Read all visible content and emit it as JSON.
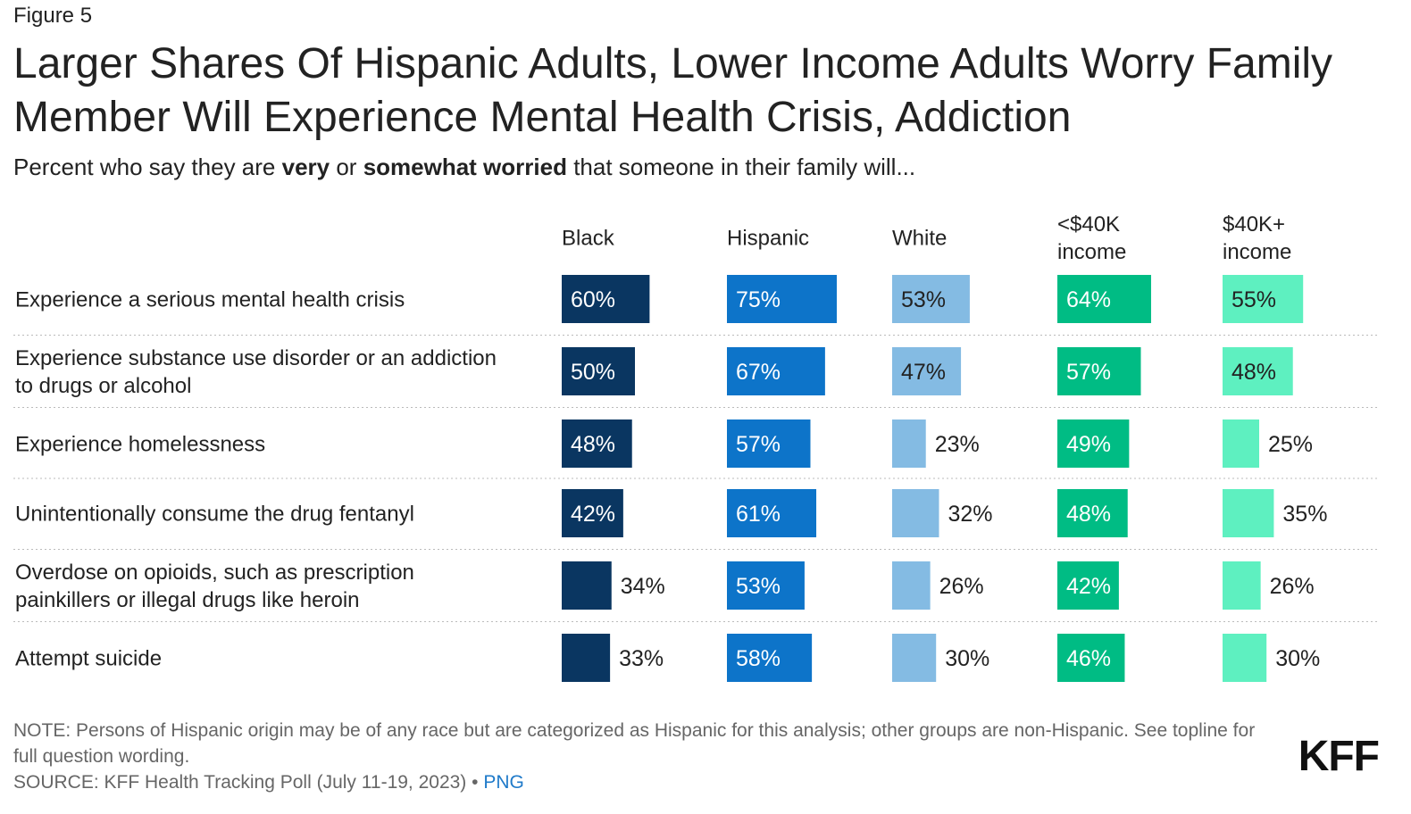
{
  "figure_label": "Figure 5",
  "title": "Larger Shares Of Hispanic Adults, Lower Income Adults Worry Family Member Will Experience Mental Health Crisis, Addiction",
  "subtitle": {
    "part1": "Percent who say they are ",
    "bold1": "very",
    "part2": " or ",
    "bold2": "somewhat worried",
    "part3": " that someone in their family will..."
  },
  "chart_data": {
    "type": "bar",
    "orientation": "horizontal",
    "layout": "small-multiples",
    "categories": [
      [
        "Experience a serious mental health crisis"
      ],
      [
        "Experience substance use disorder or an addiction",
        "to drugs or alcohol"
      ],
      [
        "Experience homelessness"
      ],
      [
        "Unintentionally consume the drug fentanyl"
      ],
      [
        "Overdose on opioids, such as prescription",
        "painkillers or illegal drugs like heroin"
      ],
      [
        "Attempt suicide"
      ]
    ],
    "series": [
      {
        "name": [
          "Black"
        ],
        "color": "#0a3661",
        "values": [
          60,
          50,
          48,
          42,
          34,
          33
        ],
        "labels": [
          "60%",
          "50%",
          "48%",
          "42%",
          "34%",
          "33%"
        ]
      },
      {
        "name": [
          "Hispanic"
        ],
        "color": "#0d74c9",
        "values": [
          75,
          67,
          57,
          61,
          53,
          58
        ],
        "labels": [
          "75%",
          "67%",
          "57%",
          "61%",
          "53%",
          "58%"
        ]
      },
      {
        "name": [
          "White"
        ],
        "color": "#84bbe3",
        "values": [
          53,
          47,
          23,
          32,
          26,
          30
        ],
        "labels": [
          "53%",
          "47%",
          "23%",
          "32%",
          "26%",
          "30%"
        ]
      },
      {
        "name": [
          "<$40K",
          "income"
        ],
        "color": "#00bc84",
        "values": [
          64,
          57,
          49,
          48,
          42,
          46
        ],
        "labels": [
          "64%",
          "57%",
          "49%",
          "48%",
          "42%",
          "46%"
        ]
      },
      {
        "name": [
          "$40K+",
          "income"
        ],
        "color": "#5ef0c0",
        "values": [
          55,
          48,
          25,
          35,
          26,
          30
        ],
        "labels": [
          "55%",
          "48%",
          "25%",
          "35%",
          "26%",
          "30%"
        ]
      }
    ],
    "xlim": [
      0,
      100
    ]
  },
  "footer": {
    "note": "NOTE: Persons of Hispanic origin may be of any race but are categorized as Hispanic for this analysis; other groups are non-Hispanic. See topline for full question wording.",
    "source": "SOURCE: KFF Health Tracking Poll (July 11-19, 2023) • ",
    "png_link": "PNG"
  },
  "logo_text": "KFF"
}
